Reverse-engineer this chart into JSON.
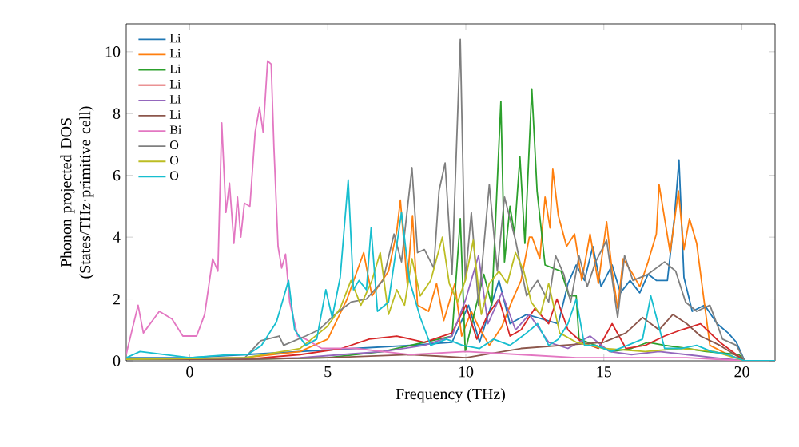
{
  "chart_data": {
    "type": "line",
    "xlabel": "Frequency (THz)",
    "ylabel": "Phonon projected DOS (States/THz·primitive cell)",
    "xlim": [
      -2.3,
      21.2
    ],
    "ylim": [
      0,
      10.9
    ],
    "xticks": [
      0,
      5,
      10,
      15,
      20
    ],
    "yticks": [
      0,
      2,
      4,
      6,
      8,
      10
    ],
    "grid": false,
    "legend": "top left",
    "marker": "none",
    "line_style": "solid",
    "series": [
      {
        "name": "Li",
        "color": "#1f77b4",
        "x": [
          -2.3,
          0,
          2,
          4,
          6,
          8,
          9.5,
          10.1,
          10.5,
          11.2,
          11.6,
          12.2,
          13.35,
          13.7,
          14.0,
          14.3,
          14.6,
          14.9,
          15.3,
          15.6,
          15.95,
          16.3,
          16.6,
          16.9,
          17.3,
          17.55,
          17.72,
          17.9,
          18.2,
          18.65,
          19.1,
          19.5,
          19.8,
          20.1,
          21.2
        ],
        "values": [
          0.1,
          0.1,
          0.2,
          0.3,
          0.4,
          0.5,
          0.6,
          1.8,
          0.6,
          2.6,
          1.2,
          1.5,
          1.2,
          2.5,
          3.1,
          2.6,
          3.7,
          2.4,
          3.1,
          2.2,
          2.6,
          2.2,
          2.8,
          2.6,
          2.6,
          4.6,
          6.5,
          2.7,
          1.6,
          1.8,
          1.2,
          0.9,
          0.6,
          0,
          0
        ]
      },
      {
        "name": "Li",
        "color": "#ff7f0e",
        "x": [
          -2.3,
          2,
          4,
          5,
          5.7,
          6.3,
          6.6,
          7.2,
          7.5,
          7.63,
          7.88,
          8.07,
          8.25,
          8.65,
          8.94,
          9.2,
          9.6,
          9.85,
          10.2,
          10.46,
          10.85,
          11.3,
          11.7,
          12.0,
          12.3,
          12.4,
          12.68,
          12.87,
          13.05,
          13.15,
          13.35,
          13.65,
          13.94,
          14.2,
          14.5,
          14.8,
          15.1,
          15.3,
          15.5,
          15.7,
          16.05,
          16.3,
          16.6,
          16.9,
          17.0,
          17.2,
          17.4,
          17.7,
          17.9,
          18.1,
          18.36,
          18.65,
          18.84,
          19.5,
          20.1,
          21.2
        ],
        "values": [
          0.05,
          0.1,
          0.3,
          0.7,
          2.0,
          3.5,
          2.1,
          2.9,
          4.2,
          5.2,
          2.5,
          4.7,
          1.8,
          1.6,
          2.5,
          1.3,
          2.5,
          0.8,
          1.6,
          1.1,
          0.5,
          1.1,
          2.0,
          2.6,
          4.0,
          4.0,
          3.3,
          5.3,
          4.3,
          6.2,
          4.7,
          3.7,
          4.1,
          2.6,
          4.1,
          2.5,
          4.5,
          2.9,
          1.7,
          3.3,
          2.8,
          2.4,
          3.2,
          4.1,
          5.7,
          4.6,
          3.5,
          5.5,
          3.6,
          4.6,
          3.8,
          1.8,
          0.5,
          0.2,
          0,
          0
        ]
      },
      {
        "name": "Li",
        "color": "#2ca02c",
        "x": [
          -2.3,
          2,
          5,
          7,
          8.5,
          9.5,
          9.8,
          9.98,
          10.27,
          10.65,
          10.94,
          11.27,
          11.4,
          11.6,
          11.76,
          11.96,
          12.14,
          12.39,
          12.58,
          12.87,
          13.15,
          13.45,
          13.74,
          14.0,
          14.1,
          14.7,
          15.28,
          16.0,
          16.6,
          17.2,
          18.0,
          18.7,
          19.9,
          20.1,
          21.2
        ],
        "values": [
          0.05,
          0.05,
          0.1,
          0.3,
          null,
          0.8,
          4.6,
          0.3,
          1.4,
          2.8,
          1.8,
          8.4,
          3.2,
          5.0,
          4.1,
          6.6,
          3.8,
          8.8,
          5.5,
          3.1,
          3.0,
          2.9,
          2.1,
          2.1,
          0.7,
          0.5,
          0.3,
          0.4,
          0.6,
          0.5,
          0.4,
          0.3,
          0.2,
          0,
          0
        ]
      },
      {
        "name": "Li",
        "color": "#d62728",
        "x": [
          -2.3,
          2,
          4,
          5.5,
          6.5,
          7.5,
          8.5,
          9.5,
          10.0,
          10.4,
          10.8,
          11.2,
          11.6,
          12.0,
          12.5,
          13.0,
          13.3,
          13.7,
          14.2,
          14.8,
          15.3,
          15.8,
          16.5,
          17.2,
          17.8,
          18.5,
          19.2,
          20.1,
          21.2
        ],
        "values": [
          0.05,
          0.05,
          0.2,
          0.4,
          0.7,
          0.8,
          0.6,
          0.9,
          1.8,
          0.7,
          1.5,
          2.0,
          0.8,
          1.0,
          1.7,
          1.2,
          2.0,
          1.0,
          0.6,
          0.4,
          1.2,
          0.4,
          0.5,
          0.8,
          1.0,
          1.2,
          0.6,
          0,
          0
        ]
      },
      {
        "name": "Li",
        "color": "#9467bd",
        "x": [
          -2.3,
          2,
          4,
          5.5,
          7,
          8.5,
          9.5,
          10.0,
          10.46,
          10.8,
          11.3,
          11.8,
          12.3,
          13.0,
          13.7,
          14.5,
          15.2,
          16.0,
          17.0,
          18.0,
          19.0,
          20.1,
          21.2
        ],
        "values": [
          0.05,
          0.05,
          0.1,
          0.2,
          0.3,
          0.5,
          0.8,
          2.0,
          3.4,
          1.2,
          2.2,
          1.0,
          1.5,
          0.6,
          0.4,
          0.8,
          0.3,
          0.2,
          0.3,
          0.2,
          0.1,
          0,
          0
        ]
      },
      {
        "name": "Li",
        "color": "#8c564b",
        "x": [
          -2.3,
          2,
          5,
          8,
          10,
          12,
          13.5,
          15,
          15.8,
          16.4,
          17.0,
          17.5,
          18.0,
          18.5,
          19.2,
          20.1,
          21.2
        ],
        "values": [
          0.05,
          0.05,
          0.1,
          0.2,
          0.1,
          0.4,
          0.5,
          0.6,
          0.9,
          1.4,
          1.0,
          1.5,
          1.2,
          0.8,
          0.5,
          0,
          0
        ]
      },
      {
        "name": "Bi",
        "color": "#e377c2",
        "x": [
          -2.3,
          -2.25,
          -1.87,
          -1.68,
          -1.1,
          -0.64,
          -0.25,
          0.25,
          0.54,
          0.83,
          1.02,
          1.16,
          1.31,
          1.44,
          1.6,
          1.73,
          1.85,
          1.98,
          2.18,
          2.37,
          2.53,
          2.66,
          2.82,
          2.95,
          3.05,
          3.2,
          3.33,
          3.47,
          3.62,
          3.91,
          4.2,
          4.78,
          6,
          8,
          10,
          12,
          14,
          16,
          18,
          20.1,
          21.2
        ],
        "values": [
          0.2,
          0.4,
          1.8,
          0.9,
          1.6,
          1.35,
          0.8,
          0.8,
          1.5,
          3.3,
          2.9,
          7.7,
          4.8,
          5.75,
          3.8,
          5.3,
          4.0,
          5.1,
          5.0,
          7.4,
          8.2,
          7.4,
          9.7,
          9.6,
          6.9,
          3.7,
          3.0,
          3.45,
          1.9,
          0.8,
          0.7,
          0.4,
          0.4,
          0.2,
          0.3,
          0.2,
          0.1,
          0.1,
          0.1,
          0,
          0
        ]
      },
      {
        "name": "O",
        "color": "#7f7f7f",
        "x": [
          -2.3,
          2,
          2.57,
          3.24,
          3.4,
          4.2,
          4.68,
          5.26,
          5.84,
          6.4,
          7.0,
          7.4,
          7.67,
          8.05,
          8.25,
          8.5,
          8.84,
          9.03,
          9.25,
          9.5,
          9.8,
          9.98,
          10.2,
          10.46,
          10.85,
          11.14,
          11.4,
          11.8,
          12.2,
          12.6,
          13.0,
          13.25,
          13.55,
          13.8,
          14.1,
          14.4,
          14.7,
          15.1,
          15.5,
          15.75,
          16.05,
          16.6,
          17.2,
          17.6,
          17.96,
          18.36,
          18.84,
          19.3,
          19.8,
          20.1,
          21.2
        ],
        "values": [
          0.05,
          0.1,
          0.65,
          0.8,
          0.5,
          0.8,
          1.0,
          1.5,
          1.9,
          2.0,
          2.6,
          4.1,
          3.2,
          6.25,
          3.5,
          3.6,
          3.0,
          5.5,
          6.4,
          2.8,
          10.4,
          2.6,
          4.8,
          1.8,
          5.7,
          2.9,
          5.3,
          3.9,
          2.1,
          2.6,
          1.9,
          3.4,
          2.8,
          1.9,
          3.4,
          2.4,
          3.2,
          3.9,
          1.4,
          3.4,
          2.6,
          2.8,
          3.2,
          2.9,
          1.9,
          1.6,
          1.8,
          0.7,
          0.5,
          0,
          0
        ]
      },
      {
        "name": "O",
        "color": "#bcbd22",
        "x": [
          -2.3,
          2,
          4,
          4.97,
          5.45,
          5.84,
          6.2,
          6.6,
          6.9,
          7.2,
          7.5,
          7.78,
          8.05,
          8.35,
          8.73,
          9.03,
          9.15,
          9.4,
          9.7,
          9.98,
          10.27,
          10.56,
          10.85,
          11.2,
          11.5,
          11.8,
          12.1,
          12.37,
          12.7,
          13.0,
          13.4,
          14.0,
          15.0,
          16.5,
          17.8,
          19.0,
          20.1,
          21.2
        ],
        "values": [
          0.05,
          0.1,
          0.4,
          1.1,
          1.7,
          2.6,
          1.8,
          2.6,
          3.5,
          1.5,
          2.3,
          1.8,
          3.3,
          2.1,
          2.6,
          3.6,
          4.0,
          2.5,
          1.9,
          2.6,
          3.9,
          1.5,
          2.5,
          2.9,
          2.5,
          3.5,
          2.9,
          1.9,
          1.5,
          2.5,
          0.9,
          0.6,
          0.4,
          0.3,
          0.4,
          0.3,
          0,
          0
        ]
      },
      {
        "name": "O",
        "color": "#17becf",
        "x": [
          -2.3,
          -1.8,
          0,
          1.5,
          2.1,
          2.6,
          3.14,
          3.58,
          3.8,
          4.2,
          4.6,
          4.93,
          5.16,
          5.45,
          5.74,
          5.93,
          6.13,
          6.4,
          6.57,
          6.8,
          7.2,
          7.67,
          7.96,
          8.35,
          8.73,
          9.3,
          9.88,
          10.5,
          11.0,
          11.6,
          12.2,
          12.6,
          13.0,
          13.35,
          13.7,
          14.0,
          14.3,
          14.7,
          15.28,
          15.86,
          16.4,
          16.7,
          17.2,
          17.8,
          18.36,
          18.9,
          19.5,
          20.1,
          21.2
        ],
        "values": [
          0.1,
          0.3,
          0.1,
          0.2,
          0.2,
          0.5,
          1.25,
          2.6,
          1.0,
          0.5,
          0.7,
          2.3,
          1.4,
          2.7,
          5.85,
          2.3,
          2.6,
          2.3,
          4.3,
          1.6,
          1.9,
          4.8,
          2.6,
          1.4,
          0.5,
          0.7,
          0.5,
          0.4,
          0.7,
          0.5,
          0.9,
          1.2,
          0.5,
          0.7,
          1.2,
          2.0,
          0.5,
          0.5,
          0.3,
          0.5,
          0.7,
          2.1,
          0.4,
          0.4,
          0.5,
          0.3,
          0.2,
          0,
          0
        ]
      }
    ]
  }
}
